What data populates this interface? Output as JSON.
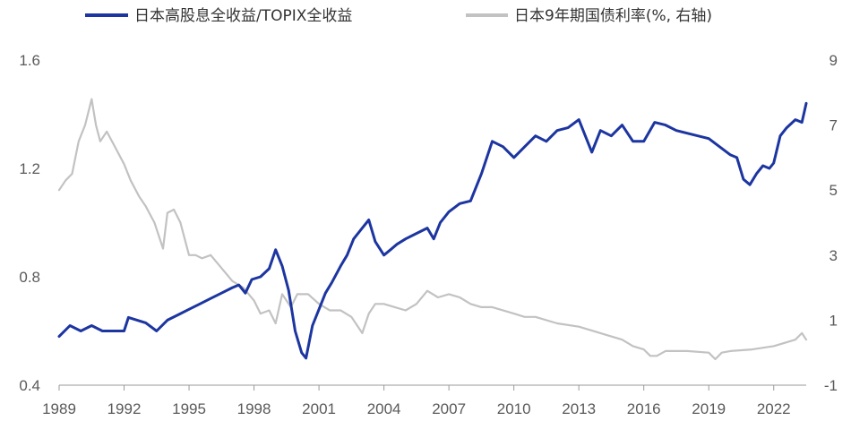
{
  "chart_data": {
    "type": "line",
    "title": "",
    "xlabel": "",
    "ylabel": "",
    "x_range": [
      1989.0,
      2023.5
    ],
    "ylim_left": [
      0.4,
      1.6
    ],
    "ylim_right": [
      -1,
      9
    ],
    "grid": false,
    "legend_position": "top",
    "x_ticks": [
      "1989",
      "1992",
      "1995",
      "1998",
      "2001",
      "2004",
      "2007",
      "2010",
      "2013",
      "2016",
      "2019",
      "2022"
    ],
    "y_ticks_left": [
      "0.4",
      "0.8",
      "1.2",
      "1.6"
    ],
    "y_ticks_right": [
      "-1",
      "1",
      "3",
      "5",
      "7",
      "9"
    ],
    "series": [
      {
        "name": "日本高股息全收益/TOPIX全收益",
        "axis": "left",
        "color": "#1c35a0",
        "x": [
          1989.0,
          1989.5,
          1990.0,
          1990.5,
          1991.0,
          1991.5,
          1992.0,
          1992.2,
          1993.0,
          1993.5,
          1994.0,
          1994.5,
          1995.0,
          1995.5,
          1996.0,
          1996.5,
          1997.0,
          1997.3,
          1997.6,
          1997.9,
          1998.3,
          1998.7,
          1999.0,
          1999.3,
          1999.6,
          1999.9,
          2000.2,
          2000.4,
          2000.7,
          2001.0,
          2001.3,
          2001.6,
          2002.0,
          2002.3,
          2002.6,
          2003.0,
          2003.3,
          2003.6,
          2004.0,
          2004.3,
          2004.6,
          2005.0,
          2005.5,
          2006.0,
          2006.3,
          2006.6,
          2007.0,
          2007.5,
          2008.0,
          2008.5,
          2009.0,
          2009.5,
          2010.0,
          2010.5,
          2011.0,
          2011.5,
          2012.0,
          2012.5,
          2013.0,
          2013.3,
          2013.6,
          2014.0,
          2014.5,
          2015.0,
          2015.5,
          2016.0,
          2016.5,
          2017.0,
          2017.5,
          2018.0,
          2018.5,
          2019.0,
          2019.5,
          2020.0,
          2020.3,
          2020.6,
          2020.9,
          2021.2,
          2021.5,
          2021.8,
          2022.0,
          2022.3,
          2022.6,
          2023.0,
          2023.3,
          2023.5
        ],
        "values": [
          0.58,
          0.62,
          0.6,
          0.62,
          0.6,
          0.6,
          0.6,
          0.65,
          0.63,
          0.6,
          0.64,
          0.66,
          0.68,
          0.7,
          0.72,
          0.74,
          0.76,
          0.77,
          0.74,
          0.79,
          0.8,
          0.83,
          0.9,
          0.84,
          0.75,
          0.6,
          0.52,
          0.5,
          0.62,
          0.68,
          0.74,
          0.78,
          0.84,
          0.88,
          0.94,
          0.98,
          1.01,
          0.93,
          0.88,
          0.9,
          0.92,
          0.94,
          0.96,
          0.98,
          0.94,
          1.0,
          1.04,
          1.07,
          1.08,
          1.18,
          1.3,
          1.28,
          1.24,
          1.28,
          1.32,
          1.3,
          1.34,
          1.35,
          1.38,
          1.32,
          1.26,
          1.34,
          1.32,
          1.36,
          1.3,
          1.3,
          1.37,
          1.36,
          1.34,
          1.33,
          1.32,
          1.31,
          1.28,
          1.25,
          1.24,
          1.16,
          1.14,
          1.18,
          1.21,
          1.2,
          1.22,
          1.32,
          1.35,
          1.38,
          1.37,
          1.44
        ]
      },
      {
        "name": "日本9年期国债利率(%, 右轴)",
        "axis": "right",
        "color": "#c2c2c2",
        "x": [
          1989.0,
          1989.3,
          1989.6,
          1989.9,
          1990.2,
          1990.5,
          1990.7,
          1990.9,
          1991.2,
          1991.6,
          1992.0,
          1992.3,
          1992.7,
          1993.0,
          1993.4,
          1993.8,
          1994.0,
          1994.3,
          1994.6,
          1995.0,
          1995.3,
          1995.6,
          1996.0,
          1996.5,
          1997.0,
          1997.5,
          1998.0,
          1998.3,
          1998.7,
          1999.0,
          1999.3,
          1999.7,
          2000.0,
          2000.5,
          2001.0,
          2001.5,
          2002.0,
          2002.5,
          2003.0,
          2003.3,
          2003.6,
          2004.0,
          2004.5,
          2005.0,
          2005.5,
          2006.0,
          2006.5,
          2007.0,
          2007.5,
          2008.0,
          2008.5,
          2009.0,
          2010.0,
          2010.5,
          2011.0,
          2012.0,
          2013.0,
          2013.5,
          2014.0,
          2015.0,
          2015.5,
          2016.0,
          2016.3,
          2016.6,
          2017.0,
          2018.0,
          2019.0,
          2019.3,
          2019.6,
          2020.0,
          2021.0,
          2022.0,
          2022.5,
          2023.0,
          2023.3,
          2023.5
        ],
        "values": [
          5.0,
          5.3,
          5.5,
          6.5,
          7.0,
          7.8,
          7.0,
          6.5,
          6.8,
          6.3,
          5.8,
          5.3,
          4.8,
          4.5,
          4.0,
          3.2,
          4.3,
          4.4,
          4.0,
          3.0,
          3.0,
          2.9,
          3.0,
          2.6,
          2.2,
          2.0,
          1.6,
          1.2,
          1.3,
          0.9,
          1.8,
          1.4,
          1.8,
          1.8,
          1.5,
          1.3,
          1.3,
          1.1,
          0.6,
          1.2,
          1.5,
          1.5,
          1.4,
          1.3,
          1.5,
          1.9,
          1.7,
          1.8,
          1.7,
          1.5,
          1.4,
          1.4,
          1.2,
          1.1,
          1.1,
          0.9,
          0.8,
          0.7,
          0.6,
          0.4,
          0.2,
          0.1,
          -0.1,
          -0.1,
          0.05,
          0.05,
          0.0,
          -0.2,
          0.0,
          0.05,
          0.1,
          0.2,
          0.3,
          0.4,
          0.6,
          0.4
        ]
      }
    ]
  }
}
